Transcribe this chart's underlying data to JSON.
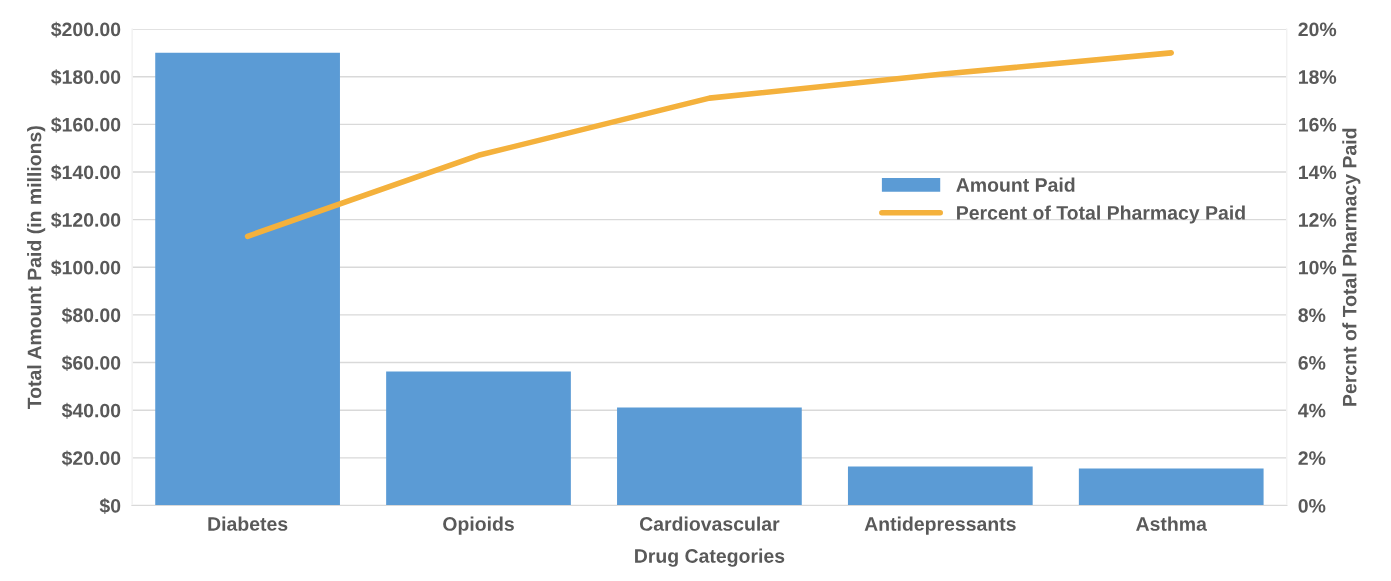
{
  "chart_data": {
    "type": "bar",
    "xlabel": "Drug Categories",
    "ylabel": "Total Amount Paid (in millions)",
    "y2label": "Percnt of Total Pharmacy Paid",
    "categories": [
      "Diabetes",
      "Opioids",
      "Cardiovascular",
      "Antidepressants",
      "Asthma"
    ],
    "series": [
      {
        "name": "Amount Paid",
        "color": "#5b9bd5",
        "values": [
          190,
          56.2,
          41.1,
          16.4,
          15.5
        ]
      },
      {
        "name": "Percent of Total Pharmacy Paid",
        "type": "line",
        "axis": "y2",
        "color": "#f4b13c",
        "values": [
          11.3,
          14.7,
          17.1,
          18.1,
          19.0
        ]
      }
    ],
    "ylim": [
      0,
      200
    ],
    "yticks": [
      {
        "value": 0,
        "label": "$0"
      },
      {
        "value": 20,
        "label": "$20.00"
      },
      {
        "value": 40,
        "label": "$40.00"
      },
      {
        "value": 60,
        "label": "$60.00"
      },
      {
        "value": 80,
        "label": "$80.00"
      },
      {
        "value": 100,
        "label": "$100.00"
      },
      {
        "value": 120,
        "label": "$120.00"
      },
      {
        "value": 140,
        "label": "$140.00"
      },
      {
        "value": 160,
        "label": "$160.00"
      },
      {
        "value": 180,
        "label": "$180.00"
      },
      {
        "value": 200,
        "label": "$200.00"
      }
    ],
    "y2lim": [
      0,
      20
    ],
    "y2ticks": [
      {
        "value": 0,
        "label": "0%"
      },
      {
        "value": 2,
        "label": "2%"
      },
      {
        "value": 4,
        "label": "4%"
      },
      {
        "value": 6,
        "label": "6%"
      },
      {
        "value": 8,
        "label": "8%"
      },
      {
        "value": 10,
        "label": "10%"
      },
      {
        "value": 12,
        "label": "12%"
      },
      {
        "value": 14,
        "label": "14%"
      },
      {
        "value": 16,
        "label": "16%"
      },
      {
        "value": 18,
        "label": "18%"
      },
      {
        "value": 20,
        "label": "20%"
      }
    ],
    "grid": "y",
    "legend": "right",
    "marker": "none",
    "line_style": "solid"
  }
}
